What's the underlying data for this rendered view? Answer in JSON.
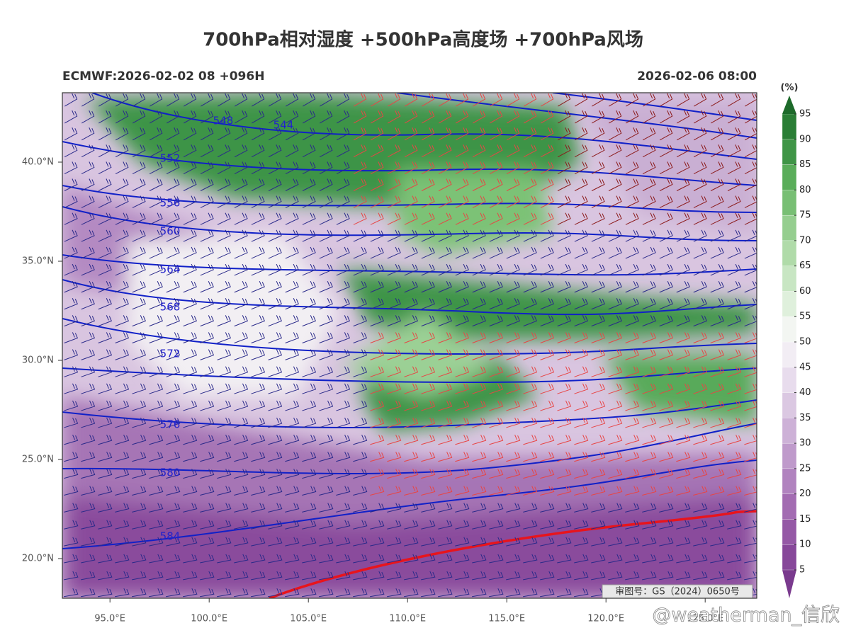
{
  "title": "700hPa相对湿度 +500hPa高度场 +700hPa风场",
  "subtitle_left": "ECMWF:2026-02-02 08 +096H",
  "subtitle_right": "2026-02-06 08:00",
  "map": {
    "xlim": [
      92.6,
      127.6
    ],
    "ylim": [
      18,
      43.5
    ],
    "xticks": [
      {
        "value": 95,
        "label": "95.0°E"
      },
      {
        "value": 100,
        "label": "100.0°E"
      },
      {
        "value": 105,
        "label": "105.0°E"
      },
      {
        "value": 110,
        "label": "110.0°E"
      },
      {
        "value": 115,
        "label": "115.0°E"
      },
      {
        "value": 120,
        "label": "120.0°E"
      },
      {
        "value": 125,
        "label": "125.0°E"
      }
    ],
    "yticks": [
      {
        "value": 20,
        "label": "20.0°N"
      },
      {
        "value": 25,
        "label": "25.0°N"
      },
      {
        "value": 30,
        "label": "30.0°N"
      },
      {
        "value": 35,
        "label": "35.0°N"
      },
      {
        "value": 40,
        "label": "40.0°N"
      }
    ],
    "contour_labels": [
      548,
      544,
      552,
      556,
      560,
      564,
      568,
      572,
      576,
      580,
      584
    ]
  },
  "colorbar": {
    "unit": "(%)",
    "levels": [
      5,
      10,
      15,
      20,
      25,
      30,
      35,
      40,
      45,
      50,
      55,
      60,
      65,
      70,
      75,
      80,
      85,
      90,
      95
    ],
    "colors": [
      "#7a3a8e",
      "#87489a",
      "#9559a6",
      "#a36cb2",
      "#b183bf",
      "#bf9acb",
      "#cdb1d7",
      "#dbc8e2",
      "#e8dced",
      "#f2edf4",
      "#f3f6f2",
      "#dff0dc",
      "#c8e6c3",
      "#b0dba9",
      "#95ce8f",
      "#78bf74",
      "#5aad5a",
      "#3f9546",
      "#2a7e35",
      "#1d6a2a"
    ]
  },
  "review_number": "审图号：GS（2024）0650号",
  "watermark": "@weatherman_信欣"
}
